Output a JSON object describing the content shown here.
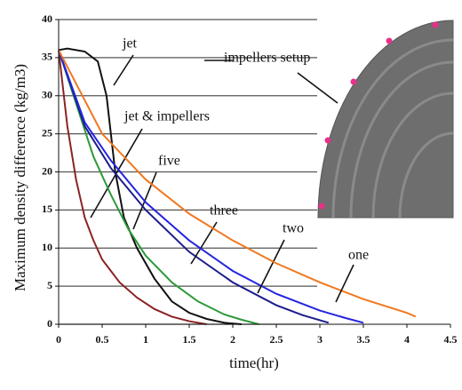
{
  "chart_data": {
    "type": "line",
    "x_label": "time(hr)",
    "y_label": "Maximum density difference (kg/m3)",
    "annotation": "impellers setup",
    "xlim": [
      0,
      4.5
    ],
    "xticks": [
      0,
      0.5,
      1,
      1.5,
      2,
      2.5,
      3,
      3.5,
      4,
      4.5
    ],
    "ylim": [
      0,
      40
    ],
    "yticks": [
      0,
      5,
      10,
      15,
      20,
      25,
      30,
      35,
      40
    ],
    "grid": true,
    "series": [
      {
        "name": "jet & impellers",
        "color": "#8b2323",
        "x": [
          0,
          0.1,
          0.2,
          0.3,
          0.4,
          0.5,
          0.7,
          0.9,
          1.1,
          1.3,
          1.5,
          1.7
        ],
        "values": [
          36,
          26,
          19,
          14,
          11,
          8.5,
          5.5,
          3.5,
          2,
          1,
          0.4,
          0
        ]
      },
      {
        "name": "jet",
        "color": "#111111",
        "x": [
          0,
          0.1,
          0.3,
          0.45,
          0.55,
          0.65,
          0.75,
          0.9,
          1.1,
          1.3,
          1.5,
          1.7,
          1.9,
          2.1
        ],
        "values": [
          36,
          36.2,
          35.8,
          34.5,
          30,
          20,
          14,
          10,
          6,
          3,
          1.5,
          0.7,
          0.2,
          0
        ]
      },
      {
        "name": "five",
        "color": "#2e9a3a",
        "x": [
          0,
          0.2,
          0.4,
          0.6,
          0.8,
          1.0,
          1.3,
          1.6,
          1.9,
          2.1,
          2.3
        ],
        "values": [
          36,
          29,
          22,
          17,
          12.5,
          9,
          5.5,
          3,
          1.3,
          0.6,
          0
        ]
      },
      {
        "name": "three",
        "color": "#1c1c8c",
        "x": [
          0,
          0.3,
          0.6,
          1.0,
          1.5,
          2.0,
          2.5,
          2.8,
          3.1
        ],
        "values": [
          36,
          26,
          20.5,
          15,
          9.5,
          5.5,
          2.5,
          1.2,
          0.2
        ]
      },
      {
        "name": "two",
        "color": "#2424e0",
        "x": [
          0,
          0.3,
          0.6,
          1.0,
          1.5,
          2.0,
          2.5,
          3.0,
          3.3,
          3.5
        ],
        "values": [
          36,
          26.5,
          21.5,
          16,
          11,
          7,
          4,
          1.8,
          0.8,
          0.2
        ]
      },
      {
        "name": "one",
        "color": "#f07820",
        "x": [
          0,
          0.5,
          1.0,
          1.5,
          2.0,
          2.5,
          3.0,
          3.5,
          4.0,
          4.1
        ],
        "values": [
          36,
          25,
          19,
          14.5,
          11,
          8,
          5.5,
          3.3,
          1.5,
          1
        ]
      }
    ]
  }
}
